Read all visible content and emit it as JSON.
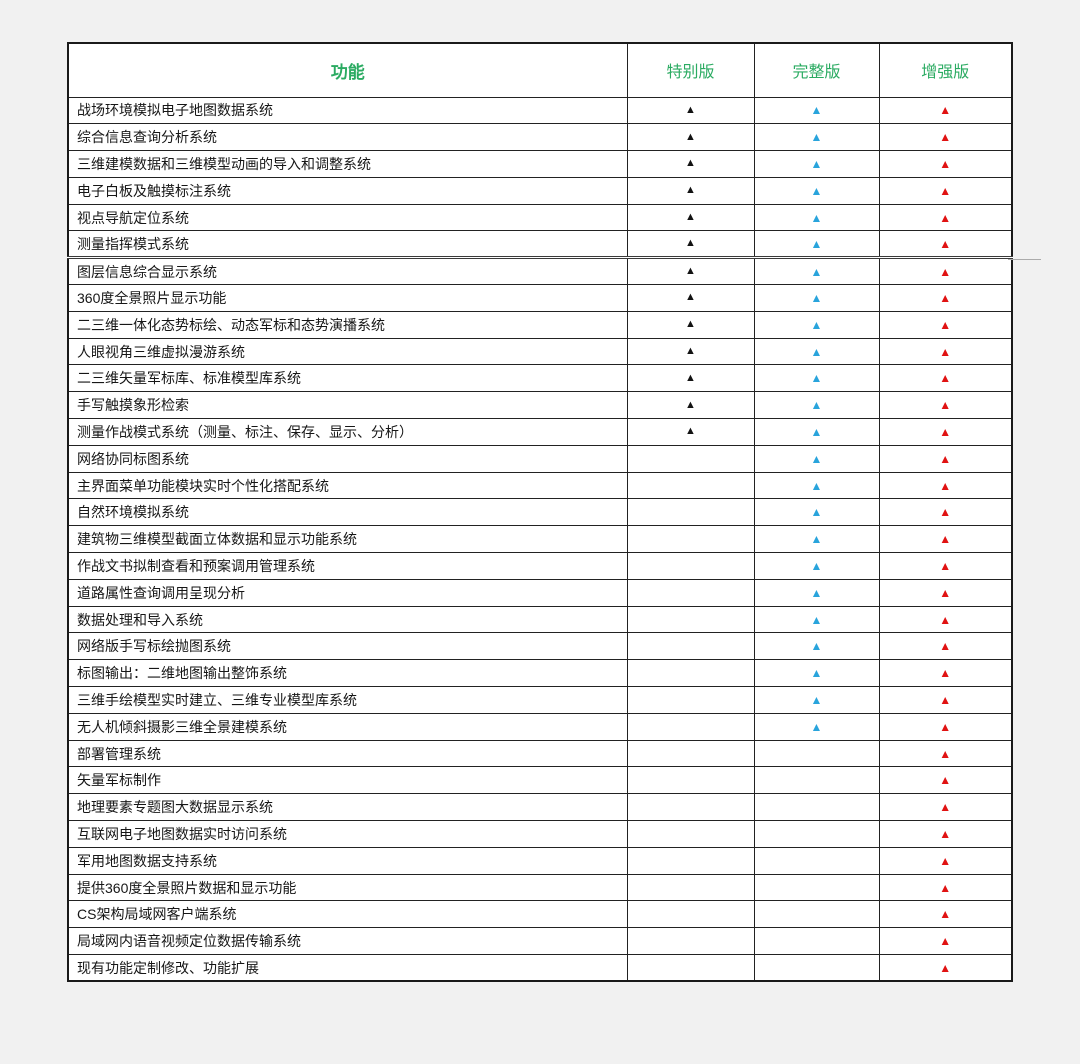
{
  "table": {
    "marker": "▲",
    "colors": {
      "header_green": "#2bab62",
      "special": "#121212",
      "complete": "#29a4dc",
      "enhanced": "#e01212"
    },
    "headers": {
      "feature": "功能",
      "editions": [
        "特别版",
        "完整版",
        "增强版"
      ]
    },
    "rows": [
      {
        "label": "战场环境模拟电子地图数据系统",
        "markers": [
          true,
          true,
          true
        ]
      },
      {
        "label": "综合信息查询分析系统",
        "markers": [
          true,
          true,
          true
        ]
      },
      {
        "label": "三维建模数据和三维模型动画的导入和调整系统",
        "markers": [
          true,
          true,
          true
        ]
      },
      {
        "label": "电子白板及触摸标注系统",
        "markers": [
          true,
          true,
          true
        ]
      },
      {
        "label": "视点导航定位系统",
        "markers": [
          true,
          true,
          true
        ]
      },
      {
        "label": "测量指挥模式系统",
        "markers": [
          true,
          true,
          true
        ]
      },
      {
        "label": "图层信息综合显示系统",
        "markers": [
          true,
          true,
          true
        ]
      },
      {
        "label": "360度全景照片显示功能",
        "markers": [
          true,
          true,
          true
        ]
      },
      {
        "label": "二三维一体化态势标绘、动态军标和态势演播系统",
        "markers": [
          true,
          true,
          true
        ]
      },
      {
        "label": "人眼视角三维虚拟漫游系统",
        "markers": [
          true,
          true,
          true
        ]
      },
      {
        "label": "二三维矢量军标库、标准模型库系统",
        "markers": [
          true,
          true,
          true
        ]
      },
      {
        "label": "手写触摸象形检索",
        "markers": [
          true,
          true,
          true
        ]
      },
      {
        "label": "测量作战模式系统（测量、标注、保存、显示、分析）",
        "markers": [
          true,
          true,
          true
        ]
      },
      {
        "label": "网络协同标图系统",
        "markers": [
          false,
          true,
          true
        ]
      },
      {
        "label": "主界面菜单功能模块实时个性化搭配系统",
        "markers": [
          false,
          true,
          true
        ]
      },
      {
        "label": "自然环境模拟系统",
        "markers": [
          false,
          true,
          true
        ]
      },
      {
        "label": "建筑物三维模型截面立体数据和显示功能系统",
        "markers": [
          false,
          true,
          true
        ]
      },
      {
        "label": "作战文书拟制查看和预案调用管理系统",
        "markers": [
          false,
          true,
          true
        ]
      },
      {
        "label": "道路属性查询调用呈现分析",
        "markers": [
          false,
          true,
          true
        ]
      },
      {
        "label": "数据处理和导入系统",
        "markers": [
          false,
          true,
          true
        ]
      },
      {
        "label": "网络版手写标绘抛图系统",
        "markers": [
          false,
          true,
          true
        ]
      },
      {
        "label": "标图输出：二维地图输出整饰系统",
        "markers": [
          false,
          true,
          true
        ]
      },
      {
        "label": "三维手绘模型实时建立、三维专业模型库系统",
        "markers": [
          false,
          true,
          true
        ]
      },
      {
        "label": "无人机倾斜摄影三维全景建模系统",
        "markers": [
          false,
          true,
          true
        ]
      },
      {
        "label": "部署管理系统",
        "markers": [
          false,
          false,
          true
        ]
      },
      {
        "label": "矢量军标制作",
        "markers": [
          false,
          false,
          true
        ]
      },
      {
        "label": "地理要素专题图大数据显示系统",
        "markers": [
          false,
          false,
          true
        ]
      },
      {
        "label": "互联网电子地图数据实时访问系统",
        "markers": [
          false,
          false,
          true
        ]
      },
      {
        "label": "军用地图数据支持系统",
        "markers": [
          false,
          false,
          true
        ]
      },
      {
        "label": "提供360度全景照片数据和显示功能",
        "markers": [
          false,
          false,
          true
        ]
      },
      {
        "label": "CS架构局域网客户端系统",
        "markers": [
          false,
          false,
          true
        ]
      },
      {
        "label": "局域网内语音视频定位数据传输系统",
        "markers": [
          false,
          false,
          true
        ]
      },
      {
        "label": "现有功能定制修改、功能扩展",
        "markers": [
          false,
          false,
          true
        ]
      }
    ]
  }
}
